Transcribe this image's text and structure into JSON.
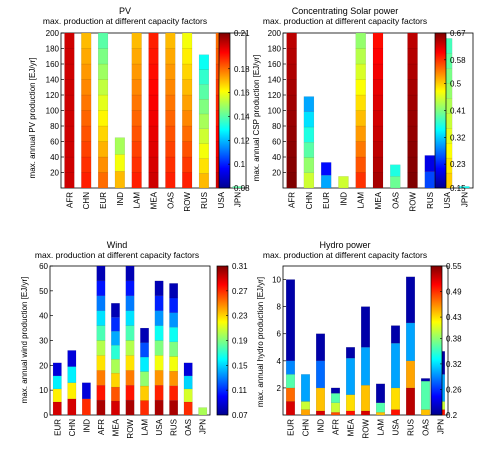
{
  "colormap_stops": [
    "#00008f",
    "#0000ff",
    "#0080ff",
    "#00ffff",
    "#80ff80",
    "#ffff00",
    "#ff8000",
    "#ff0000",
    "#800000"
  ],
  "chart_data": [
    {
      "type": "bar",
      "title": "PV",
      "subtitle": "max. production at different capacity factors",
      "ylabel": "max. annual PV production [EJ/yr]",
      "xlabel": "",
      "ylim": [
        0,
        200
      ],
      "yticks": [
        20,
        40,
        60,
        80,
        100,
        120,
        140,
        160,
        180,
        200
      ],
      "categories": [
        "AFR",
        "CHN",
        "EUR",
        "IND",
        "LAM",
        "MEA",
        "OAS",
        "ROW",
        "RUS",
        "USA",
        "JPN"
      ],
      "totals": [
        200,
        200,
        200,
        65,
        200,
        200,
        200,
        200,
        172,
        200,
        2
      ],
      "top_cf": [
        0.2,
        0.17,
        0.14,
        0.15,
        0.17,
        0.19,
        0.17,
        0.16,
        0.13,
        0.18,
        0.12
      ],
      "bottom_cf": [
        0.2,
        0.19,
        0.18,
        0.17,
        0.19,
        0.2,
        0.19,
        0.19,
        0.17,
        0.2,
        0.14
      ],
      "colorbar": {
        "min": 0.08,
        "max": 0.21,
        "ticks": [
          0.21,
          0.18,
          0.16,
          0.14,
          0.12,
          0.1,
          0.08
        ]
      },
      "grid": false,
      "legend": "colorbar-right"
    },
    {
      "type": "bar",
      "title": "Concentrating Solar power",
      "subtitle": "max. production at different capacity factors",
      "ylabel": "max. annual CSP production [EJ/yr]",
      "xlabel": "",
      "ylim": [
        0,
        200
      ],
      "yticks": [
        20,
        40,
        60,
        80,
        100,
        120,
        140,
        160,
        180,
        200
      ],
      "categories": [
        "AFR",
        "CHN",
        "EUR",
        "IND",
        "LAM",
        "MEA",
        "OAS",
        "ROW",
        "RUS",
        "USA",
        "JPN"
      ],
      "totals": [
        200,
        118,
        33,
        15,
        200,
        200,
        30,
        200,
        42,
        193,
        2
      ],
      "top_cf": [
        0.64,
        0.3,
        0.22,
        0.4,
        0.42,
        0.6,
        0.36,
        0.64,
        0.2,
        0.38,
        0.3
      ],
      "bottom_cf": [
        0.67,
        0.45,
        0.3,
        0.45,
        0.58,
        0.65,
        0.4,
        0.67,
        0.25,
        0.5,
        0.35
      ],
      "colorbar": {
        "min": 0.15,
        "max": 0.67,
        "ticks": [
          0.67,
          0.58,
          0.5,
          0.41,
          0.32,
          0.23,
          0.15
        ]
      },
      "grid": false,
      "legend": "colorbar-right"
    },
    {
      "type": "bar",
      "title": "Wind",
      "subtitle": "max. production at different capacity factors",
      "ylabel": "max. annual wind production [EJ/yr]",
      "xlabel": "",
      "ylim": [
        0,
        60
      ],
      "yticks": [
        0,
        10,
        20,
        30,
        40,
        50,
        60
      ],
      "categories": [
        "EUR",
        "CHN",
        "IND",
        "AFR",
        "MEA",
        "ROW",
        "LAM",
        "USA",
        "RUS",
        "OAS",
        "JPN"
      ],
      "totals": [
        21,
        26,
        13,
        60,
        45,
        60,
        35,
        54,
        53,
        21,
        3
      ],
      "top_cf": [
        0.09,
        0.09,
        0.09,
        0.08,
        0.08,
        0.08,
        0.08,
        0.08,
        0.08,
        0.09,
        0.1
      ],
      "bottom_cf": [
        0.29,
        0.29,
        0.27,
        0.3,
        0.29,
        0.3,
        0.27,
        0.3,
        0.3,
        0.27,
        0.2
      ],
      "colorbar": {
        "min": 0.07,
        "max": 0.31,
        "ticks": [
          0.31,
          0.27,
          0.23,
          0.19,
          0.15,
          0.11,
          0.07
        ]
      },
      "grid": false,
      "legend": "colorbar-right"
    },
    {
      "type": "bar",
      "title": "Hydro power",
      "subtitle": "max. production at different capacity factors",
      "ylabel": "max. annual hydro production [EJ/yr]",
      "xlabel": "",
      "ylim": [
        0,
        11
      ],
      "yticks": [
        2,
        4,
        6,
        8,
        10
      ],
      "categories": [
        "EUR",
        "CHN",
        "IND",
        "AFR",
        "MEA",
        "ROW",
        "LAM",
        "USA",
        "RUS",
        "OAS",
        "JPN"
      ],
      "totals": [
        10,
        3,
        6,
        2,
        5,
        8,
        2.3,
        6.6,
        10.2,
        2.7,
        4.7
      ],
      "segments": [
        [
          [
            1,
            0.52
          ],
          [
            2,
            0.47
          ],
          [
            3,
            0.36
          ],
          [
            4,
            0.29
          ],
          [
            10,
            0.21
          ]
        ],
        [
          [
            0.4,
            0.45
          ],
          [
            1,
            0.4
          ],
          [
            3,
            0.3
          ]
        ],
        [
          [
            0.3,
            0.52
          ],
          [
            2,
            0.44
          ],
          [
            4,
            0.28
          ],
          [
            6,
            0.21
          ]
        ],
        [
          [
            0.2,
            0.48
          ],
          [
            0.9,
            0.4
          ],
          [
            1.6,
            0.36
          ],
          [
            2,
            0.21
          ]
        ],
        [
          [
            0.3,
            0.5
          ],
          [
            1.5,
            0.43
          ],
          [
            4.2,
            0.3
          ],
          [
            5,
            0.21
          ]
        ],
        [
          [
            0.3,
            0.52
          ],
          [
            2.2,
            0.44
          ],
          [
            5,
            0.3
          ],
          [
            8,
            0.21
          ]
        ],
        [
          [
            0.2,
            0.44
          ],
          [
            0.9,
            0.36
          ],
          [
            2.3,
            0.21
          ]
        ],
        [
          [
            0.4,
            0.5
          ],
          [
            2,
            0.43
          ],
          [
            5.3,
            0.3
          ],
          [
            6.6,
            0.21
          ]
        ],
        [
          [
            2,
            0.53
          ],
          [
            4,
            0.45
          ],
          [
            6.8,
            0.3
          ],
          [
            10.2,
            0.21
          ]
        ],
        [
          [
            0.4,
            0.44
          ],
          [
            2.5,
            0.36
          ],
          [
            2.7,
            0.21
          ]
        ],
        [
          [
            0.4,
            0.5
          ],
          [
            1,
            0.4
          ],
          [
            3,
            0.3
          ],
          [
            4.7,
            0.21
          ]
        ]
      ],
      "colorbar": {
        "min": 0.2,
        "max": 0.55,
        "ticks": [
          0.55,
          0.49,
          0.43,
          0.38,
          0.32,
          0.26,
          0.2
        ]
      },
      "grid": false,
      "legend": "colorbar-right"
    }
  ]
}
